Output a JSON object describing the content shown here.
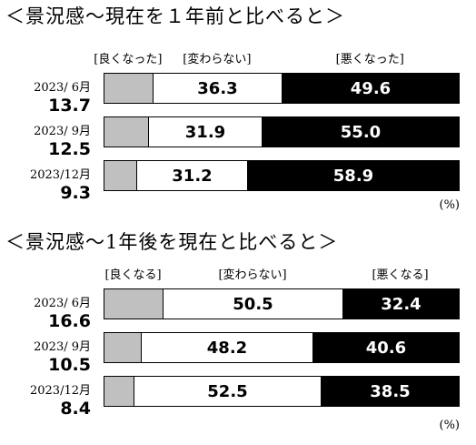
{
  "colors": {
    "good": "#c0c0c0",
    "same": "#ffffff",
    "bad": "#000000",
    "bad_text": "#ffffff"
  },
  "chart_data": [
    {
      "type": "bar",
      "orientation": "horizontal",
      "stacked": true,
      "title": "＜景況感～現在を１年前と比べると＞",
      "categories": [
        "2023/ 6月",
        "2023/ 9月",
        "2023/12月"
      ],
      "legend": [
        "[良くなった]",
        "[変わらない]",
        "[悪くなった]"
      ],
      "series": [
        {
          "name": "[良くなった]",
          "values": [
            13.7,
            12.5,
            9.3
          ],
          "labels": [
            "13.7",
            "12.5",
            "9.3"
          ]
        },
        {
          "name": "[変わらない]",
          "values": [
            36.3,
            31.9,
            31.2
          ],
          "labels": [
            "36.3",
            "31.9",
            "31.2"
          ]
        },
        {
          "name": "[悪くなった]",
          "values": [
            49.6,
            55.0,
            58.9
          ],
          "labels": [
            "49.6",
            "55.0",
            "58.9"
          ]
        }
      ],
      "unit": "(%)",
      "xlim": [
        0,
        100
      ]
    },
    {
      "type": "bar",
      "orientation": "horizontal",
      "stacked": true,
      "title": "＜景況感～1年後を現在と比べると＞",
      "categories": [
        "2023/ 6月",
        "2023/ 9月",
        "2023/12月"
      ],
      "legend": [
        "[良くなる]",
        "[変わらない]",
        "[悪くなる]"
      ],
      "series": [
        {
          "name": "[良くなる]",
          "values": [
            16.6,
            10.5,
            8.4
          ],
          "labels": [
            "16.6",
            "10.5",
            "8.4"
          ]
        },
        {
          "name": "[変わらない]",
          "values": [
            50.5,
            48.2,
            52.5
          ],
          "labels": [
            "50.5",
            "48.2",
            "52.5"
          ]
        },
        {
          "name": "[悪くなる]",
          "values": [
            32.4,
            40.6,
            38.5
          ],
          "labels": [
            "32.4",
            "40.6",
            "38.5"
          ]
        }
      ],
      "unit": "(%)",
      "xlim": [
        0,
        100
      ]
    }
  ]
}
